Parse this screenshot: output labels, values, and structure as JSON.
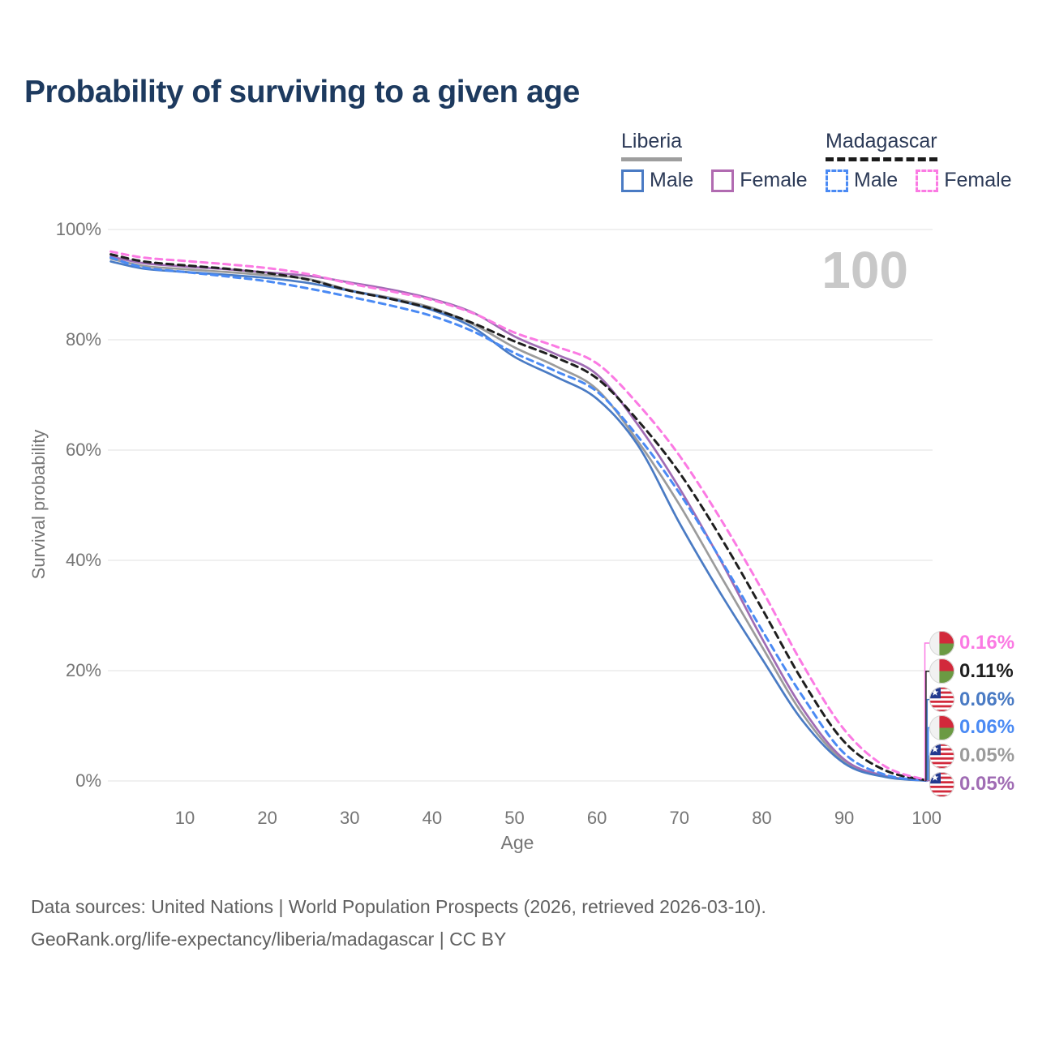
{
  "title": "Probability of surviving to a given age",
  "watermark": "100",
  "legend": {
    "groups": [
      {
        "name": "Liberia",
        "line_style": "solid",
        "underline_color": "#9e9e9e",
        "items": [
          {
            "label": "Male",
            "color": "#4a7bc4",
            "dashed": false
          },
          {
            "label": "Female",
            "color": "#b16bb1",
            "dashed": false
          }
        ]
      },
      {
        "name": "Madagascar",
        "line_style": "dashed",
        "underline_color": "#1b1b1b",
        "items": [
          {
            "label": "Male",
            "color": "#4a8af4",
            "dashed": true
          },
          {
            "label": "Female",
            "color": "#fb7ae3",
            "dashed": true
          }
        ]
      }
    ]
  },
  "chart_data": {
    "type": "line",
    "title": "Probability of surviving to a given age",
    "xlabel": "Age",
    "ylabel": "Survival probability",
    "xlim": [
      1,
      100
    ],
    "ylim": [
      0,
      100
    ],
    "grid": "horizontal",
    "legend_position": "top-right",
    "x_ticks": [
      10,
      20,
      30,
      40,
      50,
      60,
      70,
      80,
      90,
      100
    ],
    "y_ticks": [
      "0%",
      "20%",
      "40%",
      "60%",
      "80%",
      "100%"
    ],
    "x": [
      1,
      5,
      10,
      15,
      20,
      25,
      30,
      35,
      40,
      45,
      50,
      55,
      60,
      65,
      70,
      75,
      80,
      85,
      90,
      95,
      100
    ],
    "series": [
      {
        "name": "Madagascar Female",
        "color": "#fb7ae3",
        "dashed": true,
        "flag": "madagascar",
        "end_label": "0.16%",
        "values": [
          96.0,
          94.9,
          94.3,
          93.7,
          93.0,
          91.9,
          90.2,
          88.8,
          87.2,
          84.8,
          81.3,
          78.8,
          75.7,
          68.3,
          59.0,
          47.5,
          34.7,
          21.0,
          9.3,
          2.6,
          0.16
        ]
      },
      {
        "name": "Madagascar",
        "color": "#1f1f1f",
        "dashed": true,
        "flag": "madagascar",
        "end_label": "0.11%",
        "values": [
          95.5,
          94.2,
          93.5,
          92.9,
          92.1,
          90.9,
          88.9,
          87.4,
          85.6,
          83.0,
          79.7,
          76.8,
          73.0,
          65.3,
          55.9,
          44.2,
          31.3,
          18.0,
          7.1,
          1.9,
          0.11
        ]
      },
      {
        "name": "Liberia Male",
        "color": "#4a7bc4",
        "dashed": false,
        "flag": "liberia",
        "end_label": "0.06%",
        "values": [
          94.2,
          92.9,
          92.3,
          91.8,
          91.2,
          90.3,
          88.9,
          87.4,
          85.4,
          82.2,
          76.9,
          73.3,
          69.3,
          60.8,
          46.8,
          34.0,
          22.2,
          10.8,
          3.2,
          0.7,
          0.06
        ]
      },
      {
        "name": "Madagascar Male",
        "color": "#4a8af4",
        "dashed": true,
        "flag": "madagascar",
        "end_label": "0.06%",
        "values": [
          94.9,
          93.1,
          92.3,
          91.5,
          90.6,
          89.3,
          87.8,
          86.2,
          84.3,
          81.5,
          77.6,
          74.3,
          70.6,
          62.4,
          52.2,
          40.2,
          27.4,
          15.2,
          5.0,
          1.1,
          0.06
        ]
      },
      {
        "name": "Liberia",
        "color": "#9b9b9b",
        "dashed": false,
        "flag": "liberia",
        "end_label": "0.05%",
        "values": [
          94.7,
          93.4,
          92.8,
          92.3,
          91.7,
          91.0,
          89.0,
          87.6,
          85.8,
          82.8,
          78.6,
          75.2,
          71.0,
          61.5,
          50.1,
          37.2,
          24.4,
          12.0,
          3.5,
          0.8,
          0.05
        ]
      },
      {
        "name": "Liberia Female",
        "color": "#a06cb4",
        "dashed": false,
        "flag": "liberia",
        "end_label": "0.05%",
        "values": [
          95.1,
          93.9,
          93.3,
          92.8,
          92.2,
          91.6,
          90.4,
          89.1,
          87.4,
          84.9,
          80.6,
          77.4,
          73.7,
          64.5,
          53.1,
          40.0,
          25.9,
          13.0,
          3.9,
          0.9,
          0.05
        ]
      }
    ]
  },
  "footer": {
    "line1": "Data sources: United Nations | World Population Prospects (2026, retrieved 2026-03-10).",
    "line2": "GeoRank.org/life-expectancy/liberia/madagascar | CC BY"
  }
}
